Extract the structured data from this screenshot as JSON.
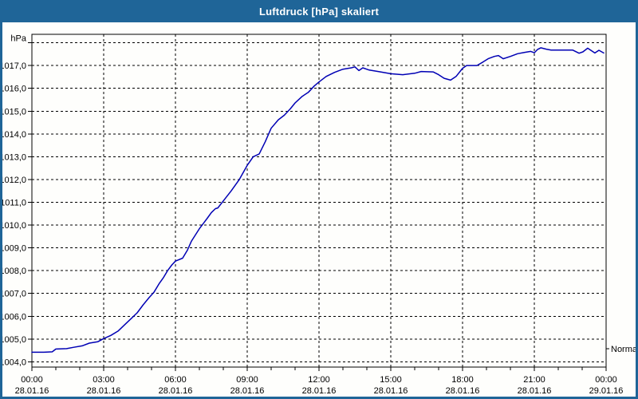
{
  "window": {
    "title": "Luftdruck [hPa] skaliert"
  },
  "colors": {
    "titlebar_bg": "#1F6598",
    "window_border": "#1F6598",
    "title_text": "#FFFFFF",
    "plot_bg": "#FEFEFC",
    "grid": "#000000",
    "axis": "#000000",
    "label_text": "#000000",
    "line": "#0000B4"
  },
  "chart_data": {
    "type": "line",
    "title": "Luftdruck [hPa] skaliert",
    "grid": true,
    "legend_position": "none",
    "y_axis": {
      "unit_label": "hPa",
      "gridline_min": 1004,
      "gridline_max": 1018,
      "gridline_step": 1,
      "range": [
        1003.77,
        1018.37
      ],
      "tick_labels": [
        "1004,0",
        "1005,0",
        "1006,0",
        "1007,0",
        "1008,0",
        "1009,0",
        "1010,0",
        "1011,0",
        "1012,0",
        "1013,0",
        "1014,0",
        "1015,0",
        "1016,0",
        "1017,0"
      ]
    },
    "x_axis": {
      "range_hours": [
        0,
        24
      ],
      "minor_tick_hours": 1,
      "major_tick_hours": 3,
      "tick_labels": [
        {
          "time": "00:00",
          "date": "28.01.16"
        },
        {
          "time": "03:00",
          "date": "28.01.16"
        },
        {
          "time": "06:00",
          "date": "28.01.16"
        },
        {
          "time": "09:00",
          "date": "28.01.16"
        },
        {
          "time": "12:00",
          "date": "28.01.16"
        },
        {
          "time": "15:00",
          "date": "28.01.16"
        },
        {
          "time": "18:00",
          "date": "28.01.16"
        },
        {
          "time": "21:00",
          "date": "28.01.16"
        },
        {
          "time": "00:00",
          "date": "29.01.16"
        }
      ]
    },
    "annotations": [
      {
        "label": "Normal",
        "value": 1004.58,
        "side": "right"
      }
    ],
    "series": [
      {
        "name": "Luftdruck",
        "unit": "hPa",
        "points": [
          [
            0.0,
            1004.42
          ],
          [
            0.5,
            1004.42
          ],
          [
            0.85,
            1004.44
          ],
          [
            1.0,
            1004.56
          ],
          [
            1.45,
            1004.58
          ],
          [
            1.75,
            1004.64
          ],
          [
            2.1,
            1004.7
          ],
          [
            2.4,
            1004.82
          ],
          [
            2.75,
            1004.88
          ],
          [
            3.0,
            1005.02
          ],
          [
            3.3,
            1005.16
          ],
          [
            3.6,
            1005.35
          ],
          [
            3.9,
            1005.65
          ],
          [
            4.15,
            1005.9
          ],
          [
            4.4,
            1006.15
          ],
          [
            4.65,
            1006.5
          ],
          [
            4.9,
            1006.82
          ],
          [
            5.1,
            1007.05
          ],
          [
            5.33,
            1007.45
          ],
          [
            5.5,
            1007.7
          ],
          [
            5.67,
            1008.0
          ],
          [
            5.85,
            1008.25
          ],
          [
            6.0,
            1008.42
          ],
          [
            6.3,
            1008.55
          ],
          [
            6.5,
            1008.9
          ],
          [
            6.67,
            1009.3
          ],
          [
            7.0,
            1009.84
          ],
          [
            7.33,
            1010.3
          ],
          [
            7.5,
            1010.55
          ],
          [
            7.67,
            1010.72
          ],
          [
            7.77,
            1010.75
          ],
          [
            8.0,
            1011.06
          ],
          [
            8.33,
            1011.5
          ],
          [
            8.67,
            1012.0
          ],
          [
            9.0,
            1012.62
          ],
          [
            9.25,
            1013.0
          ],
          [
            9.5,
            1013.12
          ],
          [
            9.75,
            1013.65
          ],
          [
            10.0,
            1014.25
          ],
          [
            10.3,
            1014.62
          ],
          [
            10.55,
            1014.82
          ],
          [
            10.8,
            1015.1
          ],
          [
            11.0,
            1015.36
          ],
          [
            11.3,
            1015.65
          ],
          [
            11.55,
            1015.82
          ],
          [
            11.8,
            1016.1
          ],
          [
            12.0,
            1016.28
          ],
          [
            12.3,
            1016.52
          ],
          [
            12.65,
            1016.7
          ],
          [
            13.0,
            1016.84
          ],
          [
            13.35,
            1016.9
          ],
          [
            13.5,
            1016.94
          ],
          [
            13.67,
            1016.78
          ],
          [
            13.83,
            1016.9
          ],
          [
            14.1,
            1016.8
          ],
          [
            14.5,
            1016.73
          ],
          [
            15.0,
            1016.64
          ],
          [
            15.5,
            1016.6
          ],
          [
            16.0,
            1016.66
          ],
          [
            16.27,
            1016.74
          ],
          [
            16.77,
            1016.72
          ],
          [
            17.0,
            1016.6
          ],
          [
            17.23,
            1016.44
          ],
          [
            17.5,
            1016.36
          ],
          [
            17.73,
            1016.52
          ],
          [
            18.0,
            1016.88
          ],
          [
            18.17,
            1017.0
          ],
          [
            18.6,
            1017.0
          ],
          [
            18.85,
            1017.15
          ],
          [
            19.07,
            1017.3
          ],
          [
            19.33,
            1017.4
          ],
          [
            19.5,
            1017.44
          ],
          [
            19.7,
            1017.3
          ],
          [
            20.0,
            1017.4
          ],
          [
            20.3,
            1017.52
          ],
          [
            20.6,
            1017.58
          ],
          [
            20.85,
            1017.62
          ],
          [
            21.0,
            1017.56
          ],
          [
            21.13,
            1017.7
          ],
          [
            21.27,
            1017.78
          ],
          [
            21.5,
            1017.72
          ],
          [
            21.7,
            1017.68
          ],
          [
            22.6,
            1017.68
          ],
          [
            22.87,
            1017.54
          ],
          [
            23.03,
            1017.6
          ],
          [
            23.23,
            1017.76
          ],
          [
            23.53,
            1017.55
          ],
          [
            23.7,
            1017.67
          ],
          [
            23.9,
            1017.55
          ]
        ]
      }
    ]
  }
}
